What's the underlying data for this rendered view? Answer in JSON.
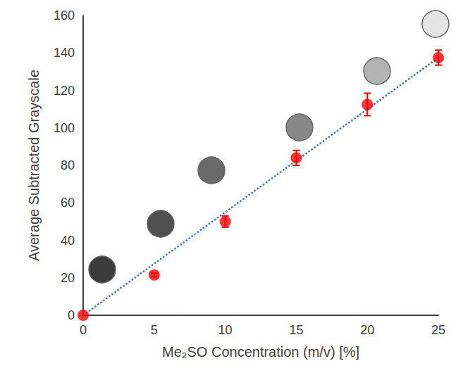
{
  "chart_data": {
    "type": "scatter",
    "xlabel": "Me₂SO Concentration (m/v) [%]",
    "ylabel": "Average Subtracted Grayscale",
    "xlim": [
      0,
      25
    ],
    "xticks": [
      0,
      5,
      10,
      15,
      20,
      25
    ],
    "ylim": [
      0,
      160
    ],
    "yticks": [
      0,
      20,
      40,
      60,
      80,
      100,
      120,
      140,
      160
    ],
    "grid": false,
    "series": [
      {
        "type": "line",
        "line_style": "dotted",
        "color": "#4472c4",
        "x": [
          0,
          25
        ],
        "values": [
          0,
          137.5
        ]
      },
      {
        "type": "scatter",
        "marker": "circle",
        "color": "#ff0000",
        "x": [
          0,
          5,
          10,
          15,
          20,
          25
        ],
        "values": [
          0,
          21.5,
          50,
          84,
          112.5,
          137.5
        ],
        "error": [
          0,
          1,
          3,
          4,
          6,
          4
        ]
      }
    ]
  }
}
